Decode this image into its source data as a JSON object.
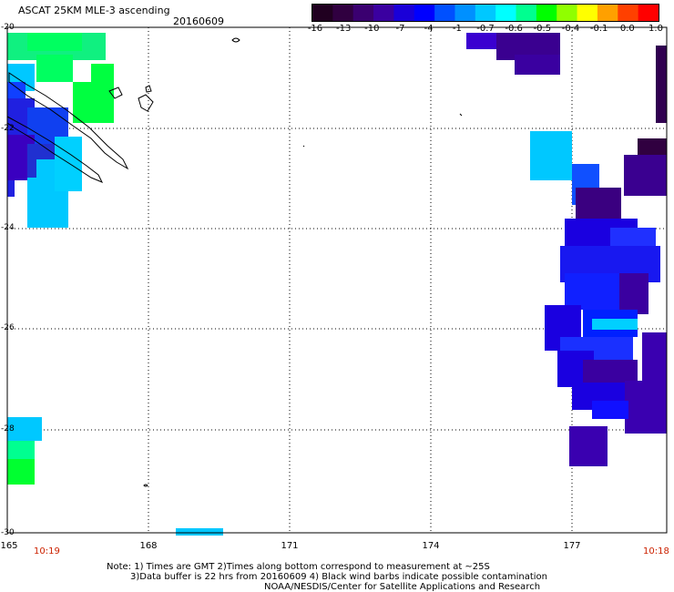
{
  "header": {
    "title": "ASCAT 25KM MLE-3 ascending",
    "date": "20160609"
  },
  "colorbar": {
    "labels": [
      "-16",
      "-13",
      "-10",
      "-7",
      "-4",
      "-1",
      "-0.7",
      "-0.6",
      "-0.5",
      "-0.4",
      "-0.1",
      "0.0",
      "1.0"
    ],
    "colors": [
      "#200020",
      "#300040",
      "#3a0070",
      "#3a00a0",
      "#1a00d8",
      "#0000ff",
      "#0050ff",
      "#0090ff",
      "#00c8ff",
      "#00ffff",
      "#00ff90",
      "#00ff00",
      "#90ff00",
      "#ffff00",
      "#ffa000",
      "#ff4000",
      "#ff0000"
    ]
  },
  "axes": {
    "lat_labels": [
      "-20",
      "-22",
      "-24",
      "-26",
      "-28",
      "-30"
    ],
    "lon_labels": [
      "165",
      "168",
      "171",
      "174",
      "177"
    ]
  },
  "times": {
    "left": "10:19",
    "right": "10:18"
  },
  "notes": {
    "line1": "Note: 1) Times are GMT 2)Times along bottom correspond to measurement at ~25S",
    "line2": "3)Data buffer is 22 hrs from 20160609 4) Black wind barbs indicate possible contamination",
    "line3": "NOAA/NESDIS/Center for Satellite Applications and Research"
  }
}
